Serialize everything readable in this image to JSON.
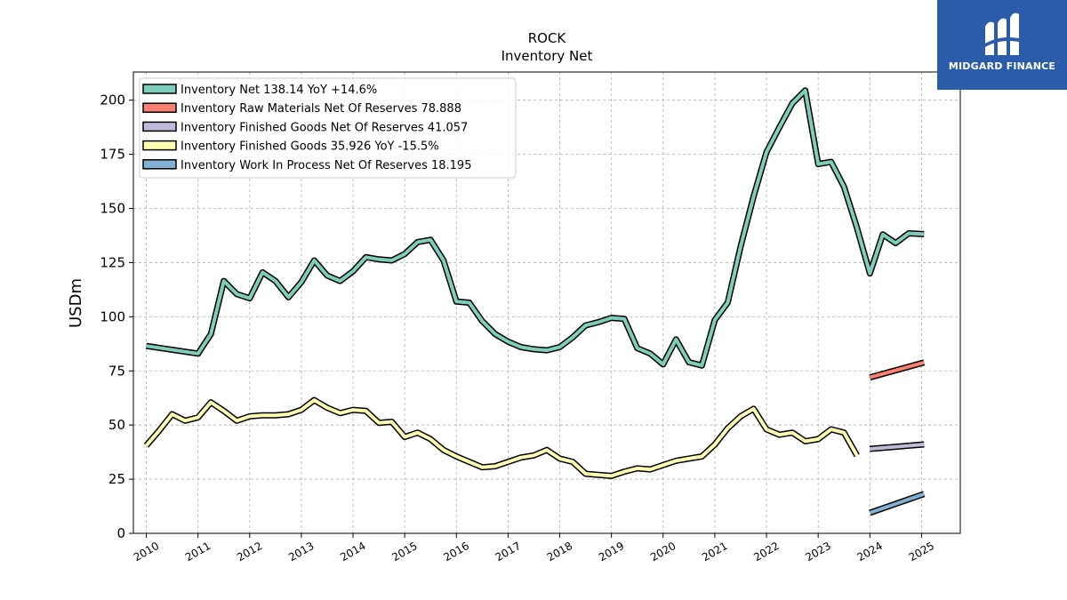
{
  "brand": {
    "name": "MIDGARD FINANCE",
    "color": "#2a5caa"
  },
  "chart_data": {
    "type": "line",
    "title": "ROCK",
    "subtitle": "Inventory Net",
    "ylabel": "USDm",
    "xlabel": "",
    "ylim": [
      0,
      213
    ],
    "xlim": [
      2009.75,
      2025.75
    ],
    "yticks": [
      0,
      25,
      50,
      75,
      100,
      125,
      150,
      175,
      200
    ],
    "xticks": [
      2010,
      2011,
      2012,
      2013,
      2014,
      2015,
      2016,
      2017,
      2018,
      2019,
      2020,
      2021,
      2022,
      2023,
      2024,
      2025
    ],
    "grid": true,
    "legend_position": "top-left",
    "series": [
      {
        "name": "Inventory Net  138.14 YoY +14.6%",
        "color": "#7fcdbb",
        "points": [
          [
            2010.0,
            86.5
          ],
          [
            2011.0,
            83.0
          ],
          [
            2011.25,
            92.0
          ],
          [
            2011.5,
            116.5
          ],
          [
            2011.75,
            110.5
          ],
          [
            2012.0,
            108.5
          ],
          [
            2012.25,
            120.5
          ],
          [
            2012.5,
            116.5
          ],
          [
            2012.75,
            109.0
          ],
          [
            2013.0,
            116.0
          ],
          [
            2013.25,
            126.0
          ],
          [
            2013.5,
            119.0
          ],
          [
            2013.75,
            116.5
          ],
          [
            2014.0,
            121.0
          ],
          [
            2014.25,
            127.5
          ],
          [
            2014.5,
            126.5
          ],
          [
            2014.75,
            126.0
          ],
          [
            2015.0,
            129.0
          ],
          [
            2015.25,
            134.5
          ],
          [
            2015.5,
            135.5
          ],
          [
            2015.75,
            126.0
          ],
          [
            2016.0,
            107.0
          ],
          [
            2016.25,
            106.5
          ],
          [
            2016.5,
            98.0
          ],
          [
            2016.75,
            92.0
          ],
          [
            2017.0,
            88.5
          ],
          [
            2017.25,
            86.0
          ],
          [
            2017.5,
            85.0
          ],
          [
            2017.75,
            84.5
          ],
          [
            2018.0,
            86.0
          ],
          [
            2018.25,
            90.5
          ],
          [
            2018.5,
            96.0
          ],
          [
            2018.75,
            97.5
          ],
          [
            2019.0,
            99.5
          ],
          [
            2019.25,
            99.0
          ],
          [
            2019.5,
            85.5
          ],
          [
            2019.75,
            83.0
          ],
          [
            2020.0,
            78.0
          ],
          [
            2020.25,
            89.5
          ],
          [
            2020.5,
            79.0
          ],
          [
            2020.75,
            77.5
          ],
          [
            2021.0,
            98.5
          ],
          [
            2021.25,
            106.5
          ],
          [
            2021.5,
            132.5
          ],
          [
            2021.75,
            155.5
          ],
          [
            2022.0,
            176.0
          ],
          [
            2022.25,
            187.5
          ],
          [
            2022.5,
            198.5
          ],
          [
            2022.75,
            204.5
          ],
          [
            2023.0,
            170.5
          ],
          [
            2023.25,
            171.5
          ],
          [
            2023.5,
            160.0
          ],
          [
            2023.75,
            141.0
          ],
          [
            2024.0,
            120.0
          ],
          [
            2024.25,
            138.0
          ],
          [
            2024.5,
            134.0
          ],
          [
            2024.75,
            138.5
          ],
          [
            2025.05,
            138.14
          ]
        ]
      },
      {
        "name": "Inventory Raw Materials Net Of Reserves  78.888",
        "color": "#fb8072",
        "points": [
          [
            2024.0,
            72.0
          ],
          [
            2025.05,
            78.888
          ]
        ]
      },
      {
        "name": "Inventory Finished Goods Net Of Reserves  41.057",
        "color": "#bebada",
        "points": [
          [
            2024.0,
            39.0
          ],
          [
            2025.05,
            41.057
          ]
        ]
      },
      {
        "name": "Inventory Finished Goods  35.926 YoY -15.5%",
        "color": "#ffffb3",
        "points": [
          [
            2010.0,
            40.5
          ],
          [
            2010.25,
            47.5
          ],
          [
            2010.5,
            55.0
          ],
          [
            2010.75,
            52.0
          ],
          [
            2011.0,
            53.5
          ],
          [
            2011.25,
            60.5
          ],
          [
            2011.5,
            56.5
          ],
          [
            2011.75,
            52.0
          ],
          [
            2012.0,
            54.0
          ],
          [
            2012.25,
            54.5
          ],
          [
            2012.5,
            54.5
          ],
          [
            2012.75,
            55.0
          ],
          [
            2013.0,
            57.0
          ],
          [
            2013.25,
            61.5
          ],
          [
            2013.5,
            58.0
          ],
          [
            2013.75,
            55.5
          ],
          [
            2014.0,
            57.0
          ],
          [
            2014.25,
            56.5
          ],
          [
            2014.5,
            51.0
          ],
          [
            2014.75,
            51.5
          ],
          [
            2015.0,
            44.5
          ],
          [
            2015.25,
            46.5
          ],
          [
            2015.5,
            43.5
          ],
          [
            2015.75,
            38.5
          ],
          [
            2016.0,
            35.5
          ],
          [
            2016.25,
            33.0
          ],
          [
            2016.5,
            30.5
          ],
          [
            2016.75,
            31.0
          ],
          [
            2017.0,
            33.0
          ],
          [
            2017.25,
            35.0
          ],
          [
            2017.5,
            36.0
          ],
          [
            2017.75,
            38.5
          ],
          [
            2018.0,
            34.5
          ],
          [
            2018.25,
            33.0
          ],
          [
            2018.5,
            27.5
          ],
          [
            2018.75,
            27.0
          ],
          [
            2019.0,
            26.5
          ],
          [
            2019.25,
            28.5
          ],
          [
            2019.5,
            30.0
          ],
          [
            2019.75,
            29.5
          ],
          [
            2020.0,
            31.5
          ],
          [
            2020.25,
            33.5
          ],
          [
            2020.5,
            34.5
          ],
          [
            2020.75,
            35.5
          ],
          [
            2021.0,
            41.0
          ],
          [
            2021.25,
            48.5
          ],
          [
            2021.5,
            54.0
          ],
          [
            2021.75,
            57.5
          ],
          [
            2022.0,
            48.0
          ],
          [
            2022.25,
            45.5
          ],
          [
            2022.5,
            46.5
          ],
          [
            2022.75,
            42.5
          ],
          [
            2023.0,
            43.5
          ],
          [
            2023.25,
            48.0
          ],
          [
            2023.5,
            46.5
          ],
          [
            2023.75,
            35.926
          ]
        ]
      },
      {
        "name": "Inventory Work In Process Net Of Reserves  18.195",
        "color": "#80b1d3",
        "points": [
          [
            2024.0,
            9.5
          ],
          [
            2025.05,
            18.195
          ]
        ]
      }
    ]
  }
}
